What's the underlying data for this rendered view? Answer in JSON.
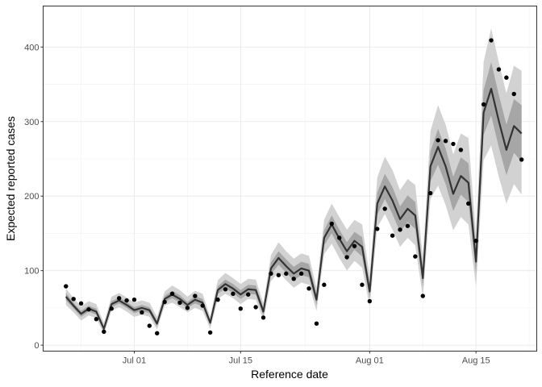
{
  "chart_data": {
    "type": "line",
    "xlabel": "Reference date",
    "ylabel": "Expected reported cases",
    "x_start": "2021-06-22",
    "x_end": "2021-08-20",
    "xlim": [
      "2021-06-19",
      "2021-08-23"
    ],
    "ylim": [
      -8,
      455
    ],
    "x_ticks": [
      {
        "date": "2021-07-01",
        "label": "Jul 01"
      },
      {
        "date": "2021-07-15",
        "label": "Jul 15"
      },
      {
        "date": "2021-08-01",
        "label": "Aug 01"
      },
      {
        "date": "2021-08-15",
        "label": "Aug 15"
      }
    ],
    "y_ticks": [
      0,
      100,
      200,
      300,
      400
    ],
    "grid": true,
    "series": [
      {
        "style": "line",
        "color": "#333333",
        "values": [
          65,
          53,
          42,
          49,
          45,
          22,
          55,
          60,
          54,
          47,
          50,
          47,
          29,
          62,
          68,
          62,
          54,
          61,
          57,
          30,
          74,
          82,
          76,
          68,
          75,
          74,
          45,
          103,
          117,
          106,
          96,
          103,
          100,
          61,
          144,
          162,
          143,
          126,
          140,
          132,
          72,
          190,
          213,
          194,
          169,
          183,
          174,
          90,
          240,
          266,
          240,
          203,
          227,
          218,
          112,
          312,
          344,
          301,
          262,
          294,
          284
        ]
      },
      {
        "style": "band-inner",
        "color": "#a6a6a6",
        "lower": [
          60,
          49,
          38,
          45,
          41,
          19,
          51,
          56,
          50,
          43,
          46,
          43,
          25,
          58,
          63,
          57,
          50,
          56,
          52,
          27,
          69,
          76,
          70,
          62,
          69,
          68,
          40,
          95,
          108,
          97,
          87,
          94,
          91,
          54,
          134,
          150,
          131,
          114,
          128,
          119,
          63,
          175,
          196,
          176,
          152,
          165,
          156,
          78,
          220,
          242,
          216,
          180,
          202,
          192,
          96,
          282,
          308,
          266,
          228,
          258,
          246
        ],
        "upper": [
          70,
          57,
          46,
          53,
          49,
          25,
          59,
          64,
          58,
          51,
          54,
          51,
          33,
          66,
          73,
          67,
          58,
          66,
          62,
          33,
          79,
          88,
          82,
          74,
          81,
          80,
          50,
          111,
          126,
          115,
          105,
          112,
          109,
          68,
          154,
          174,
          155,
          138,
          152,
          145,
          81,
          205,
          230,
          212,
          186,
          201,
          192,
          102,
          260,
          290,
          264,
          226,
          252,
          244,
          128,
          342,
          380,
          336,
          296,
          330,
          322
        ]
      },
      {
        "style": "band-outer",
        "color": "#d2d2d2",
        "lower": [
          54,
          44,
          33,
          40,
          36,
          15,
          46,
          51,
          45,
          38,
          41,
          38,
          21,
          53,
          57,
          51,
          44,
          50,
          46,
          22,
          62,
          69,
          63,
          55,
          62,
          61,
          34,
          86,
          98,
          87,
          77,
          84,
          81,
          46,
          122,
          136,
          117,
          100,
          113,
          104,
          52,
          158,
          176,
          155,
          132,
          144,
          134,
          64,
          196,
          214,
          188,
          154,
          172,
          162,
          78,
          248,
          268,
          226,
          190,
          216,
          202
        ],
        "upper": [
          76,
          63,
          52,
          59,
          55,
          30,
          65,
          70,
          64,
          57,
          60,
          57,
          38,
          72,
          80,
          74,
          65,
          73,
          69,
          38,
          87,
          97,
          90,
          82,
          89,
          88,
          56,
          121,
          138,
          126,
          116,
          123,
          120,
          77,
          168,
          190,
          172,
          155,
          168,
          162,
          93,
          225,
          253,
          235,
          208,
          223,
          215,
          118,
          287,
          322,
          296,
          256,
          284,
          278,
          148,
          380,
          425,
          380,
          338,
          375,
          368
        ]
      },
      {
        "style": "points",
        "color": "#000000",
        "values": [
          79,
          62,
          56,
          48,
          35,
          18,
          49,
          63,
          60,
          61,
          44,
          26,
          16,
          58,
          69,
          57,
          50,
          66,
          53,
          17,
          61,
          75,
          69,
          49,
          68,
          51,
          37,
          96,
          94,
          96,
          89,
          96,
          76,
          29,
          81,
          163,
          144,
          118,
          133,
          81,
          59,
          156,
          183,
          147,
          155,
          160,
          119,
          66,
          204,
          275,
          274,
          270,
          262,
          190,
          140,
          323,
          409,
          370,
          359,
          337,
          249
        ]
      }
    ]
  }
}
